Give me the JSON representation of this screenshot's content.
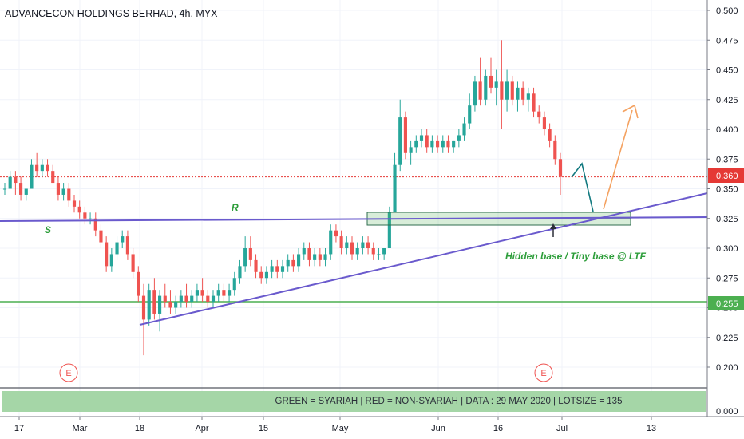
{
  "header": {
    "title": "ADVANCECON HOLDINGS BERHAD, 4h, MYX"
  },
  "footer": {
    "banner": "GREEN = SYARIAH  |  RED = NON-SYARIAH  |  DATA : 29 MAY 2020  |  LOTSIZE = 135"
  },
  "colors": {
    "up": "#26a69a",
    "down": "#ef5350",
    "trend": "#6a5acd",
    "support": "#4caf50",
    "price_tag": "#e53935",
    "annotation": "#2e9e3b",
    "arrow_teal": "#137a80",
    "arrow_orange": "#f4a261"
  },
  "chart_data": {
    "type": "candlestick",
    "title": "ADVANCECON HOLDINGS BERHAD, 4h, MYX",
    "ylim": [
      0.18,
      0.505
    ],
    "y_ticks": [
      "0.500",
      "0.475",
      "0.450",
      "0.425",
      "0.400",
      "0.375",
      "0.350",
      "0.325",
      "0.300",
      "0.275",
      "0.250",
      "0.225",
      "0.200"
    ],
    "y_extra_tick": "0.000",
    "x_ticks": [
      "17",
      "Mar",
      "18",
      "Apr",
      "15",
      "May",
      "Jun",
      "16",
      "Jul",
      "13"
    ],
    "last_price": {
      "value": 0.36,
      "label": "0.360"
    },
    "support_level": {
      "value": 0.255,
      "label": "0.255"
    },
    "annotations": {
      "support": "S",
      "resistance": "R",
      "base": "Hidden base / Tiny base @ LTF",
      "event_marker": "E"
    },
    "candles": [
      [
        0.35,
        0.355,
        0.345,
        0.35
      ],
      [
        0.35,
        0.365,
        0.35,
        0.36
      ],
      [
        0.36,
        0.365,
        0.345,
        0.355
      ],
      [
        0.355,
        0.36,
        0.34,
        0.345
      ],
      [
        0.345,
        0.35,
        0.34,
        0.35
      ],
      [
        0.35,
        0.375,
        0.35,
        0.37
      ],
      [
        0.37,
        0.38,
        0.36,
        0.365
      ],
      [
        0.365,
        0.375,
        0.36,
        0.37
      ],
      [
        0.37,
        0.375,
        0.36,
        0.365
      ],
      [
        0.365,
        0.37,
        0.355,
        0.355
      ],
      [
        0.355,
        0.36,
        0.34,
        0.345
      ],
      [
        0.345,
        0.355,
        0.34,
        0.35
      ],
      [
        0.35,
        0.355,
        0.335,
        0.34
      ],
      [
        0.34,
        0.345,
        0.33,
        0.335
      ],
      [
        0.335,
        0.34,
        0.325,
        0.33
      ],
      [
        0.33,
        0.335,
        0.32,
        0.325
      ],
      [
        0.325,
        0.33,
        0.32,
        0.325
      ],
      [
        0.325,
        0.33,
        0.31,
        0.315
      ],
      [
        0.315,
        0.32,
        0.3,
        0.305
      ],
      [
        0.305,
        0.31,
        0.28,
        0.285
      ],
      [
        0.285,
        0.3,
        0.28,
        0.295
      ],
      [
        0.295,
        0.31,
        0.29,
        0.305
      ],
      [
        0.305,
        0.315,
        0.3,
        0.31
      ],
      [
        0.31,
        0.315,
        0.29,
        0.295
      ],
      [
        0.295,
        0.3,
        0.275,
        0.28
      ],
      [
        0.28,
        0.285,
        0.255,
        0.26
      ],
      [
        0.26,
        0.27,
        0.21,
        0.24
      ],
      [
        0.24,
        0.27,
        0.235,
        0.265
      ],
      [
        0.265,
        0.275,
        0.24,
        0.245
      ],
      [
        0.245,
        0.265,
        0.23,
        0.26
      ],
      [
        0.26,
        0.27,
        0.25,
        0.255
      ],
      [
        0.255,
        0.265,
        0.245,
        0.25
      ],
      [
        0.25,
        0.26,
        0.245,
        0.255
      ],
      [
        0.255,
        0.265,
        0.25,
        0.26
      ],
      [
        0.26,
        0.27,
        0.25,
        0.255
      ],
      [
        0.255,
        0.265,
        0.25,
        0.26
      ],
      [
        0.26,
        0.27,
        0.255,
        0.265
      ],
      [
        0.265,
        0.275,
        0.255,
        0.26
      ],
      [
        0.26,
        0.265,
        0.25,
        0.255
      ],
      [
        0.255,
        0.265,
        0.25,
        0.26
      ],
      [
        0.26,
        0.27,
        0.255,
        0.265
      ],
      [
        0.265,
        0.27,
        0.255,
        0.26
      ],
      [
        0.26,
        0.27,
        0.255,
        0.265
      ],
      [
        0.265,
        0.28,
        0.26,
        0.275
      ],
      [
        0.275,
        0.29,
        0.27,
        0.285
      ],
      [
        0.285,
        0.31,
        0.28,
        0.3
      ],
      [
        0.3,
        0.31,
        0.285,
        0.29
      ],
      [
        0.29,
        0.295,
        0.275,
        0.28
      ],
      [
        0.28,
        0.285,
        0.27,
        0.275
      ],
      [
        0.275,
        0.285,
        0.27,
        0.28
      ],
      [
        0.28,
        0.29,
        0.275,
        0.285
      ],
      [
        0.285,
        0.29,
        0.275,
        0.28
      ],
      [
        0.28,
        0.29,
        0.275,
        0.285
      ],
      [
        0.285,
        0.295,
        0.28,
        0.29
      ],
      [
        0.29,
        0.295,
        0.28,
        0.285
      ],
      [
        0.285,
        0.3,
        0.28,
        0.295
      ],
      [
        0.295,
        0.305,
        0.29,
        0.3
      ],
      [
        0.3,
        0.305,
        0.285,
        0.29
      ],
      [
        0.29,
        0.3,
        0.285,
        0.295
      ],
      [
        0.295,
        0.3,
        0.285,
        0.29
      ],
      [
        0.29,
        0.3,
        0.285,
        0.295
      ],
      [
        0.295,
        0.32,
        0.29,
        0.315
      ],
      [
        0.315,
        0.32,
        0.305,
        0.31
      ],
      [
        0.31,
        0.315,
        0.295,
        0.3
      ],
      [
        0.3,
        0.31,
        0.295,
        0.305
      ],
      [
        0.305,
        0.31,
        0.29,
        0.295
      ],
      [
        0.295,
        0.305,
        0.29,
        0.3
      ],
      [
        0.3,
        0.31,
        0.295,
        0.305
      ],
      [
        0.305,
        0.31,
        0.295,
        0.3
      ],
      [
        0.3,
        0.305,
        0.29,
        0.295
      ],
      [
        0.295,
        0.3,
        0.29,
        0.295
      ],
      [
        0.295,
        0.3,
        0.29,
        0.3
      ],
      [
        0.3,
        0.335,
        0.3,
        0.33
      ],
      [
        0.33,
        0.38,
        0.33,
        0.37
      ],
      [
        0.37,
        0.425,
        0.365,
        0.41
      ],
      [
        0.41,
        0.415,
        0.375,
        0.38
      ],
      [
        0.38,
        0.39,
        0.37,
        0.385
      ],
      [
        0.385,
        0.395,
        0.38,
        0.39
      ],
      [
        0.39,
        0.4,
        0.385,
        0.395
      ],
      [
        0.395,
        0.4,
        0.38,
        0.385
      ],
      [
        0.385,
        0.395,
        0.38,
        0.39
      ],
      [
        0.39,
        0.395,
        0.38,
        0.385
      ],
      [
        0.385,
        0.395,
        0.38,
        0.39
      ],
      [
        0.39,
        0.395,
        0.38,
        0.385
      ],
      [
        0.385,
        0.39,
        0.38,
        0.39
      ],
      [
        0.39,
        0.4,
        0.385,
        0.395
      ],
      [
        0.395,
        0.41,
        0.39,
        0.405
      ],
      [
        0.405,
        0.43,
        0.4,
        0.42
      ],
      [
        0.42,
        0.445,
        0.415,
        0.44
      ],
      [
        0.44,
        0.46,
        0.42,
        0.425
      ],
      [
        0.425,
        0.45,
        0.42,
        0.445
      ],
      [
        0.445,
        0.46,
        0.43,
        0.435
      ],
      [
        0.435,
        0.45,
        0.42,
        0.44
      ],
      [
        0.44,
        0.475,
        0.4,
        0.425
      ],
      [
        0.425,
        0.45,
        0.415,
        0.44
      ],
      [
        0.44,
        0.445,
        0.42,
        0.425
      ],
      [
        0.425,
        0.44,
        0.415,
        0.435
      ],
      [
        0.435,
        0.44,
        0.42,
        0.425
      ],
      [
        0.425,
        0.435,
        0.415,
        0.43
      ],
      [
        0.43,
        0.435,
        0.41,
        0.415
      ],
      [
        0.415,
        0.42,
        0.405,
        0.41
      ],
      [
        0.41,
        0.415,
        0.395,
        0.4
      ],
      [
        0.4,
        0.405,
        0.385,
        0.39
      ],
      [
        0.39,
        0.395,
        0.37,
        0.375
      ],
      [
        0.375,
        0.38,
        0.345,
        0.36
      ]
    ]
  }
}
